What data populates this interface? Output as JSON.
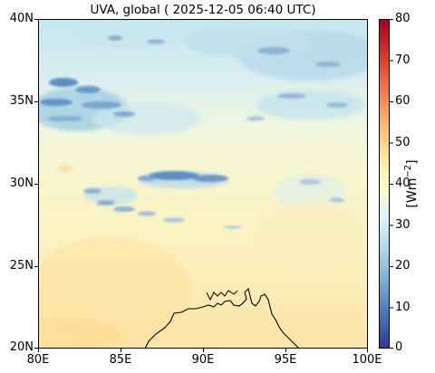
{
  "title": "UVA, global ( 2025-12-05 06:40 UTC)",
  "map": {
    "lon_range": [
      80,
      100
    ],
    "lat_range": [
      20,
      40
    ],
    "x_ticks": [
      "80E",
      "85E",
      "90E",
      "95E",
      "100E"
    ],
    "y_ticks": [
      "20N",
      "25N",
      "30N",
      "35N",
      "40N"
    ],
    "coastline_color": "#000000"
  },
  "colorbar": {
    "label_prefix": "[Wm",
    "label_exp": "−2",
    "label_suffix": "]",
    "range": [
      0,
      80
    ],
    "ticks": [
      "0",
      "10",
      "20",
      "30",
      "40",
      "50",
      "60",
      "70",
      "80"
    ],
    "colormap": "RdYlBu_r",
    "stops": [
      "#313695",
      "#4575b4",
      "#74add1",
      "#abd9e9",
      "#e0f3f8",
      "#ffffbf",
      "#fee090",
      "#fdae61",
      "#f46d43",
      "#d73027",
      "#a50026"
    ]
  }
}
